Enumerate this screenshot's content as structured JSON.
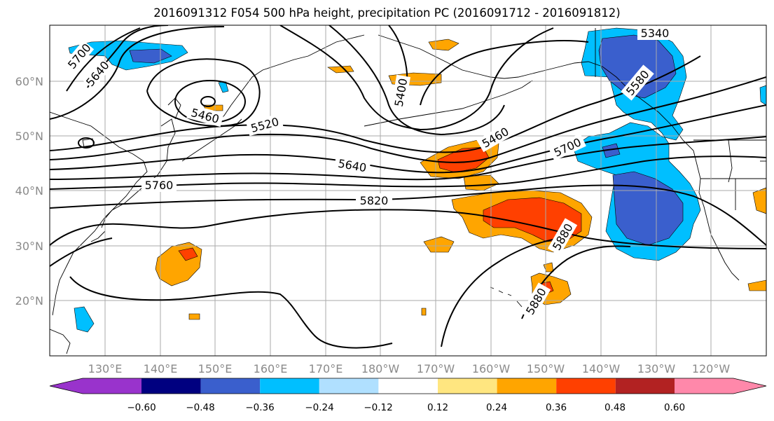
{
  "title": "2016091312 F054 500 hPa height, precipitation PC (2016091712 - 2016091812)",
  "latitude_labels": [
    "60°N",
    "50°N",
    "40°N",
    "30°N",
    "20°N"
  ],
  "longitude_labels": [
    "130°E",
    "140°E",
    "150°E",
    "160°E",
    "170°E",
    "180°W",
    "170°W",
    "160°W",
    "150°W",
    "140°W",
    "130°W",
    "120°W"
  ],
  "colorbar": {
    "ticks": [
      "−0.60",
      "−0.48",
      "−0.36",
      "−0.24",
      "−0.12",
      "0.12",
      "0.24",
      "0.36",
      "0.48",
      "0.60"
    ],
    "colors": [
      "#9933cc",
      "#000080",
      "#3a5fcd",
      "#00bfff",
      "#b0e0ff",
      "#ffffff",
      "#ffe680",
      "#ffa500",
      "#ff4000",
      "#b22222",
      "#ff88aa"
    ]
  },
  "contour_labels": [
    "5700",
    "5640",
    "5460",
    "5520",
    "5400",
    "5460",
    "5700",
    "5640",
    "5340",
    "5580",
    "5760",
    "5820",
    "5880",
    "5880"
  ]
}
